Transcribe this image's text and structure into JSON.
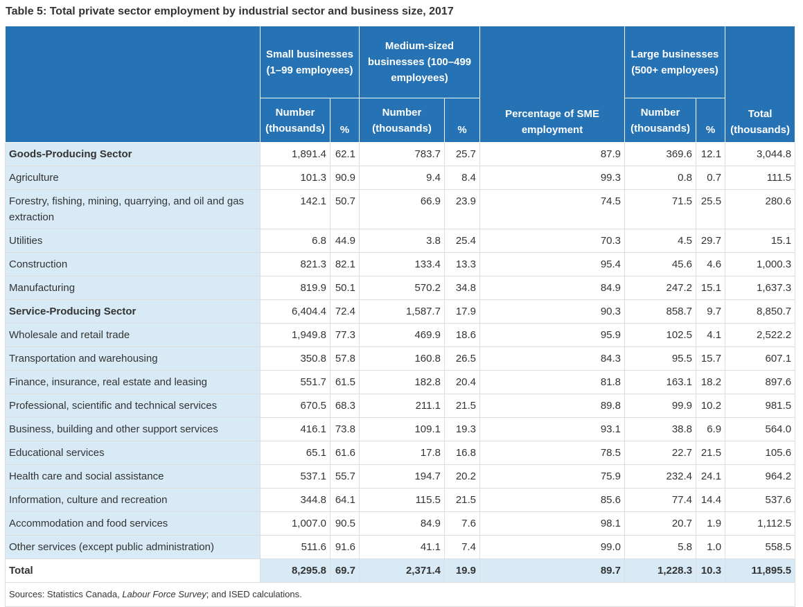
{
  "caption": "Table 5: Total private sector employment by industrial sector and business size, 2017",
  "headers": {
    "small": "Small businesses (1–99 employees)",
    "medium": "Medium-sized businesses (100–499 employees)",
    "sme_pct": "Percentage of SME employment",
    "large": "Large businesses (500+ employees)",
    "total": "Total (thousands)",
    "number": "Number (thousands)",
    "pct": "%"
  },
  "rows": [
    {
      "label": "Goods-Producing Sector",
      "bold": true,
      "cells": [
        "1,891.4",
        "62.1",
        "783.7",
        "25.7",
        "87.9",
        "369.6",
        "12.1",
        "3,044.8"
      ]
    },
    {
      "label": "Agriculture",
      "cells": [
        "101.3",
        "90.9",
        "9.4",
        "8.4",
        "99.3",
        "0.8",
        "0.7",
        "111.5"
      ]
    },
    {
      "label": "Forestry, fishing, mining, quarrying, and oil and gas extraction",
      "cells": [
        "142.1",
        "50.7",
        "66.9",
        "23.9",
        "74.5",
        "71.5",
        "25.5",
        "280.6"
      ]
    },
    {
      "label": "Utilities",
      "cells": [
        "6.8",
        "44.9",
        "3.8",
        "25.4",
        "70.3",
        "4.5",
        "29.7",
        "15.1"
      ]
    },
    {
      "label": "Construction",
      "cells": [
        "821.3",
        "82.1",
        "133.4",
        "13.3",
        "95.4",
        "45.6",
        "4.6",
        "1,000.3"
      ]
    },
    {
      "label": "Manufacturing",
      "cells": [
        "819.9",
        "50.1",
        "570.2",
        "34.8",
        "84.9",
        "247.2",
        "15.1",
        "1,637.3"
      ]
    },
    {
      "label": "Service-Producing Sector",
      "bold": true,
      "cells": [
        "6,404.4",
        "72.4",
        "1,587.7",
        "17.9",
        "90.3",
        "858.7",
        "9.7",
        "8,850.7"
      ]
    },
    {
      "label": "Wholesale and retail trade",
      "cells": [
        "1,949.8",
        "77.3",
        "469.9",
        "18.6",
        "95.9",
        "102.5",
        "4.1",
        "2,522.2"
      ]
    },
    {
      "label": "Transportation and warehousing",
      "cells": [
        "350.8",
        "57.8",
        "160.8",
        "26.5",
        "84.3",
        "95.5",
        "15.7",
        "607.1"
      ]
    },
    {
      "label": "Finance, insurance, real estate and leasing",
      "cells": [
        "551.7",
        "61.5",
        "182.8",
        "20.4",
        "81.8",
        "163.1",
        "18.2",
        "897.6"
      ]
    },
    {
      "label": "Professional, scientific and technical services",
      "cells": [
        "670.5",
        "68.3",
        "211.1",
        "21.5",
        "89.8",
        "99.9",
        "10.2",
        "981.5"
      ]
    },
    {
      "label": "Business, building and other support services",
      "cells": [
        "416.1",
        "73.8",
        "109.1",
        "19.3",
        "93.1",
        "38.8",
        "6.9",
        "564.0"
      ]
    },
    {
      "label": "Educational services",
      "cells": [
        "65.1",
        "61.6",
        "17.8",
        "16.8",
        "78.5",
        "22.7",
        "21.5",
        "105.6"
      ]
    },
    {
      "label": "Health care and social assistance",
      "cells": [
        "537.1",
        "55.7",
        "194.7",
        "20.2",
        "75.9",
        "232.4",
        "24.1",
        "964.2"
      ]
    },
    {
      "label": "Information, culture and recreation",
      "cells": [
        "344.8",
        "64.1",
        "115.5",
        "21.5",
        "85.6",
        "77.4",
        "14.4",
        "537.6"
      ]
    },
    {
      "label": "Accommodation and food services",
      "cells": [
        "1,007.0",
        "90.5",
        "84.9",
        "7.6",
        "98.1",
        "20.7",
        "1.9",
        "1,112.5"
      ]
    },
    {
      "label": "Other services (except public administration)",
      "cells": [
        "511.6",
        "91.6",
        "41.1",
        "7.4",
        "99.0",
        "5.8",
        "1.0",
        "558.5"
      ]
    }
  ],
  "total_row": {
    "label": "Total",
    "cells": [
      "8,295.8",
      "69.7",
      "2,371.4",
      "19.9",
      "89.7",
      "1,228.3",
      "10.3",
      "11,895.5"
    ]
  },
  "source": {
    "prefix": "Sources: Statistics Canada, ",
    "italic": "Labour Force Survey",
    "suffix": "; and ISED calculations."
  }
}
